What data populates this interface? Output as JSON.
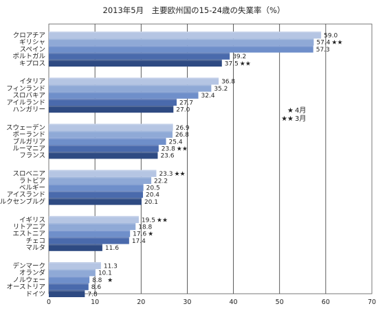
{
  "chart_data": {
    "type": "bar",
    "orientation": "horizontal",
    "title": "2013年5月　主要欧州国の15-24歳の失業率（%）",
    "xlabel": "",
    "ylabel": "",
    "xlim": [
      0,
      70
    ],
    "x_ticks": [
      "0",
      "10",
      "20",
      "30",
      "40",
      "50",
      "60",
      "70"
    ],
    "grid": "vertical",
    "legend_position": "right-middle",
    "colors": [
      "#b5c5e3",
      "#8fa9d6",
      "#6f8fca",
      "#4a6aac",
      "#2e4a82"
    ],
    "legend": [
      {
        "marker": "★",
        "label": "4月"
      },
      {
        "marker": "★★",
        "label": "3月"
      }
    ],
    "groups": [
      {
        "bars": [
          {
            "label": "クロアチア",
            "value": 59.0,
            "value_text": "59.0",
            "note": ""
          },
          {
            "label": "ギリシャ",
            "value": 57.4,
            "value_text": "57.4",
            "note": "★★"
          },
          {
            "label": "スペイン",
            "value": 57.3,
            "value_text": "57.3",
            "note": ""
          },
          {
            "label": "ポルトガル",
            "value": 39.2,
            "value_text": "39.2",
            "note": ""
          },
          {
            "label": "キプロス",
            "value": 37.5,
            "value_text": "37.5",
            "note": "★★"
          }
        ]
      },
      {
        "bars": [
          {
            "label": "イタリア",
            "value": 36.8,
            "value_text": "36.8",
            "note": ""
          },
          {
            "label": "フィンランド",
            "value": 35.2,
            "value_text": "35.2",
            "note": ""
          },
          {
            "label": "スロバキア",
            "value": 32.4,
            "value_text": "32.4",
            "note": ""
          },
          {
            "label": "アイルランド",
            "value": 27.7,
            "value_text": "27.7",
            "note": ""
          },
          {
            "label": "ハンガリー",
            "value": 27.0,
            "value_text": "27.0",
            "note": ""
          }
        ]
      },
      {
        "bars": [
          {
            "label": "スウェーデン",
            "value": 26.9,
            "value_text": "26.9",
            "note": ""
          },
          {
            "label": "ポーランド",
            "value": 26.8,
            "value_text": "26.8",
            "note": ""
          },
          {
            "label": "ブルガリア",
            "value": 25.4,
            "value_text": "25.4",
            "note": ""
          },
          {
            "label": "ルーマニア",
            "value": 23.8,
            "value_text": "23.8",
            "note": "★★"
          },
          {
            "label": "フランス",
            "value": 23.6,
            "value_text": "23.6",
            "note": ""
          }
        ]
      },
      {
        "bars": [
          {
            "label": "スロベニア",
            "value": 23.3,
            "value_text": "23.3",
            "note": "★★"
          },
          {
            "label": "ラトビア",
            "value": 22.2,
            "value_text": "22.2",
            "note": ""
          },
          {
            "label": "ベルギー",
            "value": 20.5,
            "value_text": "20.5",
            "note": ""
          },
          {
            "label": "アイスランド",
            "value": 20.4,
            "value_text": "20.4",
            "note": ""
          },
          {
            "label": "ルクセンブルグ",
            "value": 20.1,
            "value_text": "20.1",
            "note": ""
          }
        ]
      },
      {
        "bars": [
          {
            "label": "イギリス",
            "value": 19.5,
            "value_text": "19.5",
            "note": "★★"
          },
          {
            "label": "リトアニア",
            "value": 18.8,
            "value_text": "18.8",
            "note": ""
          },
          {
            "label": "エストニア",
            "value": 17.6,
            "value_text": "17.6",
            "note": "★"
          },
          {
            "label": "チェコ",
            "value": 17.4,
            "value_text": "17.4",
            "note": ""
          },
          {
            "label": "マルタ",
            "value": 11.6,
            "value_text": "11.6",
            "note": ""
          }
        ]
      },
      {
        "bars": [
          {
            "label": "デンマーク",
            "value": 11.3,
            "value_text": "11.3",
            "note": ""
          },
          {
            "label": "オランダ",
            "value": 10.1,
            "value_text": "10.1",
            "note": ""
          },
          {
            "label": "ノルウェー",
            "value": 8.8,
            "value_text": "8.8",
            "note": "★"
          },
          {
            "label": "オーストリア",
            "value": 8.6,
            "value_text": "8.6",
            "note": ""
          },
          {
            "label": "ドイツ",
            "value": 7.8,
            "value_text": "7.8",
            "note": ""
          }
        ]
      }
    ]
  }
}
